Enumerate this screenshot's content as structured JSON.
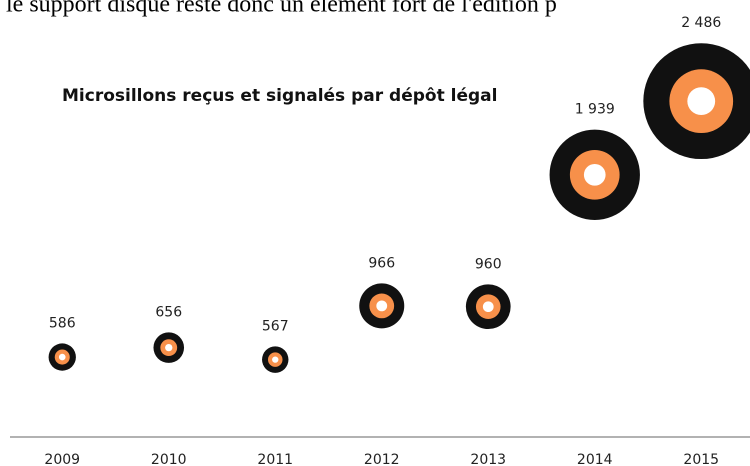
{
  "page_text": ", le support disque reste donc un élément fort de l'édition p",
  "chart_data": {
    "type": "bubble",
    "title": "Microsillons reçus et signalés par dépôt légal",
    "categories": [
      "2009",
      "2010",
      "2011",
      "2012",
      "2013",
      "2014",
      "2015"
    ],
    "values": [
      586,
      656,
      567,
      966,
      960,
      1939,
      2486
    ],
    "value_labels": [
      "586",
      "656",
      "567",
      "966",
      "960",
      "1 939",
      "2 486"
    ],
    "color": "#f7904a"
  }
}
